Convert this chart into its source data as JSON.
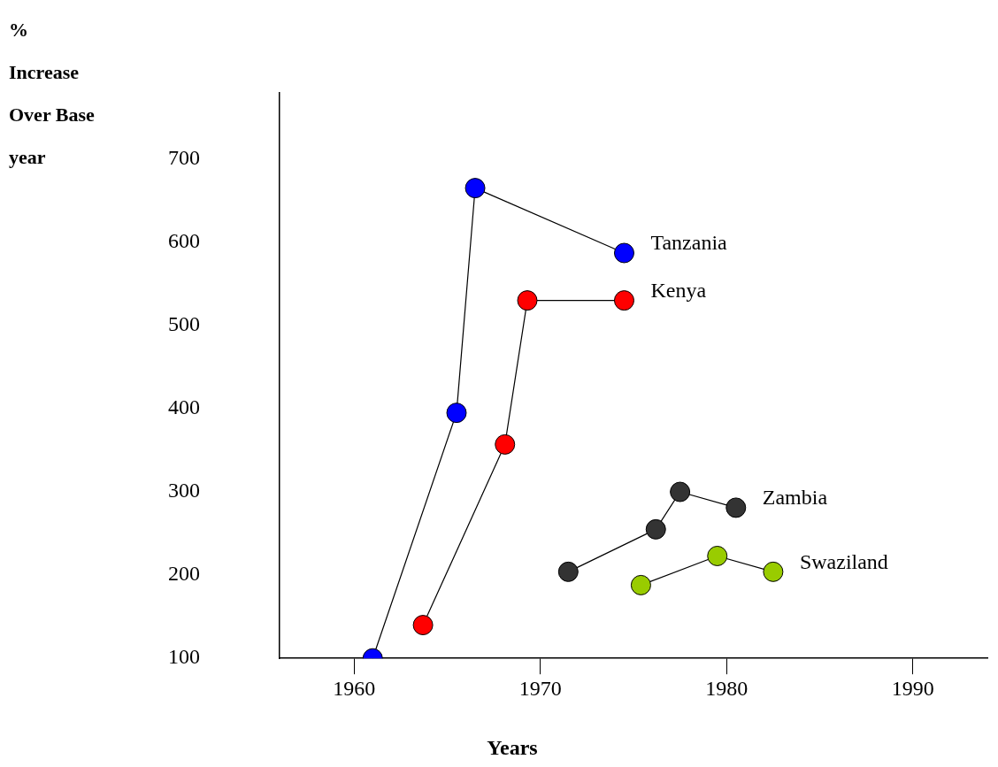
{
  "chart_data": {
    "type": "line",
    "xlabel": "Years",
    "ylabel": "%\nIncrease\nOver Base\nyear",
    "xlim": [
      1956,
      1994
    ],
    "xticks": [
      1960,
      1970,
      1980,
      1990
    ],
    "ylim": [
      100,
      780
    ],
    "yticks": [
      100,
      200,
      300,
      400,
      500,
      600,
      700
    ],
    "grid": false,
    "legend": false,
    "marker": "circle",
    "line_style": "solid",
    "series": [
      {
        "name": "Tanzania",
        "color": "#0000ff",
        "x": [
          1961,
          1965.5,
          1966.5,
          1974.5
        ],
        "values": [
          100,
          395,
          665,
          587
        ]
      },
      {
        "name": "Kenya",
        "color": "#ff0000",
        "x": [
          1963.7,
          1968.1,
          1969.3,
          1974.5
        ],
        "values": [
          140,
          357,
          530,
          530
        ]
      },
      {
        "name": "Zambia",
        "color": "#333333",
        "x": [
          1971.5,
          1976.2,
          1977.5,
          1980.5
        ],
        "values": [
          204,
          255,
          300,
          281
        ]
      },
      {
        "name": "Swaziland",
        "color": "#99cc00",
        "x": [
          1975.4,
          1979.5,
          1982.5
        ],
        "values": [
          188,
          223,
          204
        ]
      }
    ]
  }
}
